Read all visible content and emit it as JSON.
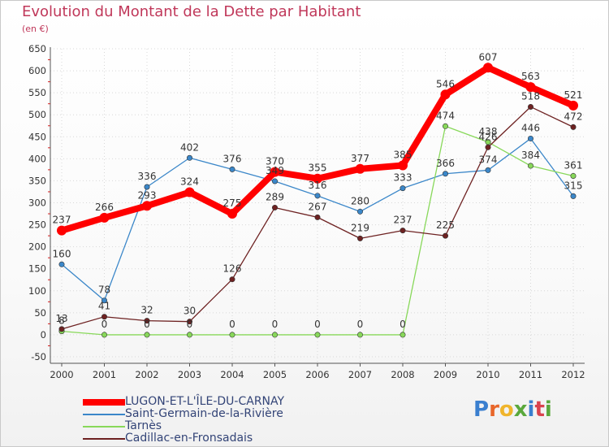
{
  "header": {
    "title": "Evolution du Montant de la Dette par Habitant",
    "unit": "(en €)"
  },
  "logo": {
    "text": "Proxiti",
    "colors": [
      "#3a7fcf",
      "#e8662a",
      "#f0b52c",
      "#5aa83c",
      "#3a7fcf",
      "#d9434e",
      "#5aa83c"
    ]
  },
  "chart_data": {
    "type": "line",
    "title": "Evolution du Montant de la Dette par Habitant",
    "ylabel": "(en €)",
    "xlabel": "",
    "ylim": [
      -50,
      650
    ],
    "yticks": [
      -50,
      0,
      50,
      100,
      150,
      200,
      250,
      300,
      350,
      400,
      450,
      500,
      550,
      600,
      650
    ],
    "categories": [
      "2000",
      "2001",
      "2002",
      "2003",
      "2004",
      "2005",
      "2006",
      "2007",
      "2008",
      "2009",
      "2010",
      "2011",
      "2012"
    ],
    "grid": true,
    "legend_position": "bottom-left",
    "series": [
      {
        "name": "LUGON-ET-L'ÎLE-DU-CARNAY",
        "color": "#ff0000",
        "emphasis": "thick",
        "values": [
          237,
          266,
          293,
          324,
          275,
          370,
          355,
          377,
          385,
          546,
          607,
          563,
          521
        ]
      },
      {
        "name": "Saint-Germain-de-la-Rivière",
        "color": "#3b87c9",
        "emphasis": "normal",
        "values": [
          160,
          78,
          336,
          402,
          376,
          349,
          316,
          280,
          333,
          366,
          374,
          446,
          315
        ]
      },
      {
        "name": "Tarnès",
        "color": "#88d85a",
        "emphasis": "normal",
        "values": [
          8,
          0,
          0,
          0,
          0,
          0,
          0,
          0,
          0,
          474,
          438,
          384,
          361
        ]
      },
      {
        "name": "Cadillac-en-Fronsadais",
        "color": "#6e2222",
        "emphasis": "normal",
        "values": [
          13,
          41,
          32,
          30,
          126,
          289,
          267,
          219,
          237,
          225,
          426,
          518,
          472
        ]
      }
    ]
  }
}
